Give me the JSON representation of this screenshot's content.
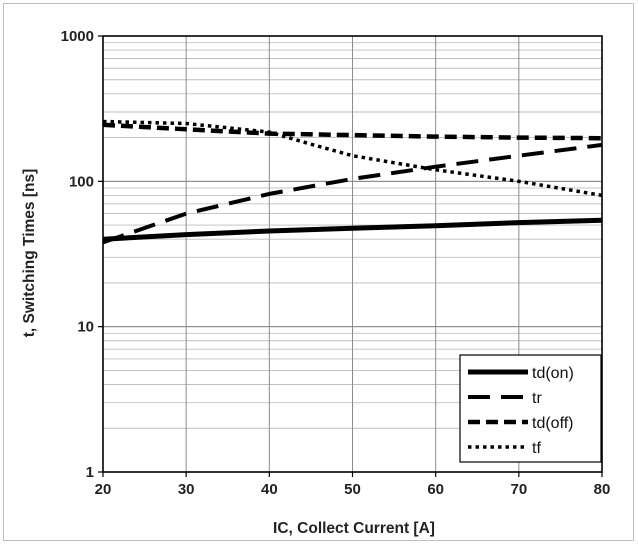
{
  "chart_data": {
    "type": "line",
    "xlabel": "IC, Collect Current [A]",
    "ylabel": "t, Switching Times [ns]",
    "xlim": [
      20,
      80
    ],
    "ylim": [
      1,
      1000
    ],
    "yscale": "log",
    "x_ticks": [
      "20",
      "30",
      "40",
      "50",
      "60",
      "70",
      "80"
    ],
    "y_ticks": [
      "1",
      "10",
      "100",
      "1000"
    ],
    "grid": true,
    "legend_position": "bottom-right",
    "series": [
      {
        "name": "td(on)",
        "style": "solid",
        "x": [
          20,
          30,
          40,
          50,
          60,
          70,
          80
        ],
        "y": [
          40,
          43,
          45.5,
          47.5,
          49.5,
          52,
          54
        ]
      },
      {
        "name": "tr",
        "style": "dashed",
        "x": [
          20,
          30,
          40,
          50,
          60,
          70,
          80
        ],
        "y": [
          38,
          60,
          82,
          104,
          126,
          150,
          178
        ]
      },
      {
        "name": "td(off)",
        "style": "dashed-short",
        "x": [
          20,
          30,
          40,
          50,
          60,
          70,
          80
        ],
        "y": [
          245,
          228,
          213,
          208,
          203,
          200,
          198
        ]
      },
      {
        "name": "tf",
        "style": "dotted",
        "x": [
          20,
          30,
          40,
          45,
          50,
          60,
          70,
          80
        ],
        "y": [
          258,
          250,
          218,
          180,
          150,
          120,
          100,
          80
        ]
      }
    ]
  }
}
